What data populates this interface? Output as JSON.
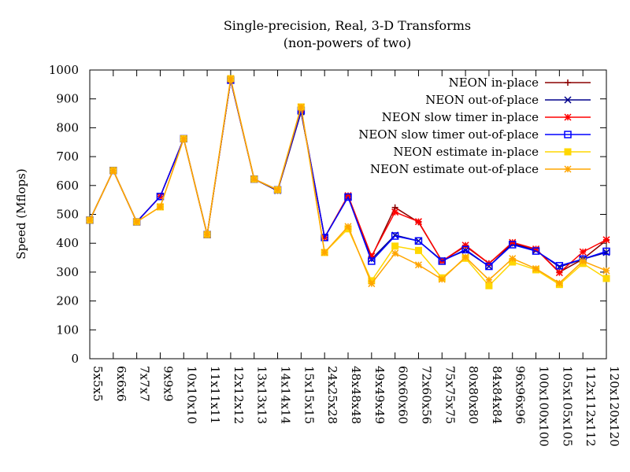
{
  "chart_data": {
    "type": "line",
    "title": "Single-precision, Real, 3-D Transforms",
    "subtitle": "(non-powers of two)",
    "xlabel": "",
    "ylabel": "Speed (Mflops)",
    "ylim": [
      0,
      1000
    ],
    "yticks": [
      "0",
      "100",
      "200",
      "300",
      "400",
      "500",
      "600",
      "700",
      "800",
      "900",
      "1000"
    ],
    "grid": false,
    "legend_position": "top-right",
    "categories": [
      "5x5x5",
      "6x6x6",
      "7x7x7",
      "9x9x9",
      "10x10x10",
      "11x11x11",
      "12x12x12",
      "13x13x13",
      "14x14x14",
      "15x15x15",
      "24x25x28",
      "48x48x48",
      "49x49x49",
      "60x60x60",
      "72x60x56",
      "75x75x75",
      "80x80x80",
      "84x84x84",
      "96x96x96",
      "100x100x100",
      "105x105x105",
      "112x112x112",
      "120x120x120"
    ],
    "series": [
      {
        "name": "NEON in-place",
        "color": "#8b0000",
        "marker": "plus",
        "values": [
          480,
          652,
          474,
          562,
          762,
          430,
          965,
          622,
          582,
          855,
          420,
          563,
          352,
          524,
          473,
          338,
          390,
          330,
          400,
          380,
          300,
          345,
          410
        ]
      },
      {
        "name": "NEON out-of-place",
        "color": "#00008b",
        "marker": "x",
        "values": [
          480,
          652,
          474,
          562,
          762,
          430,
          965,
          622,
          582,
          855,
          420,
          560,
          345,
          428,
          408,
          340,
          375,
          320,
          398,
          375,
          318,
          345,
          368
        ]
      },
      {
        "name": "NEON slow timer in-place",
        "color": "#ff0000",
        "marker": "star",
        "values": [
          480,
          652,
          474,
          562,
          762,
          430,
          965,
          622,
          585,
          860,
          420,
          565,
          355,
          508,
          475,
          338,
          393,
          330,
          403,
          380,
          298,
          370,
          412
        ]
      },
      {
        "name": "NEON slow timer out-of-place",
        "color": "#0000ff",
        "marker": "box",
        "values": [
          480,
          652,
          474,
          562,
          762,
          430,
          965,
          622,
          585,
          860,
          420,
          560,
          338,
          425,
          408,
          338,
          378,
          320,
          395,
          373,
          322,
          345,
          372
        ]
      },
      {
        "name": "NEON estimate in-place",
        "color": "#ffd700",
        "marker": "filled-box",
        "values": [
          480,
          652,
          474,
          526,
          762,
          430,
          970,
          622,
          585,
          872,
          368,
          450,
          270,
          390,
          375,
          280,
          348,
          253,
          335,
          308,
          257,
          330,
          278
        ]
      },
      {
        "name": "NEON estimate out-of-place",
        "color": "#ffa500",
        "marker": "star",
        "values": [
          480,
          652,
          474,
          526,
          762,
          430,
          970,
          622,
          585,
          872,
          368,
          458,
          260,
          365,
          325,
          275,
          352,
          273,
          347,
          312,
          262,
          338,
          305
        ]
      }
    ]
  }
}
